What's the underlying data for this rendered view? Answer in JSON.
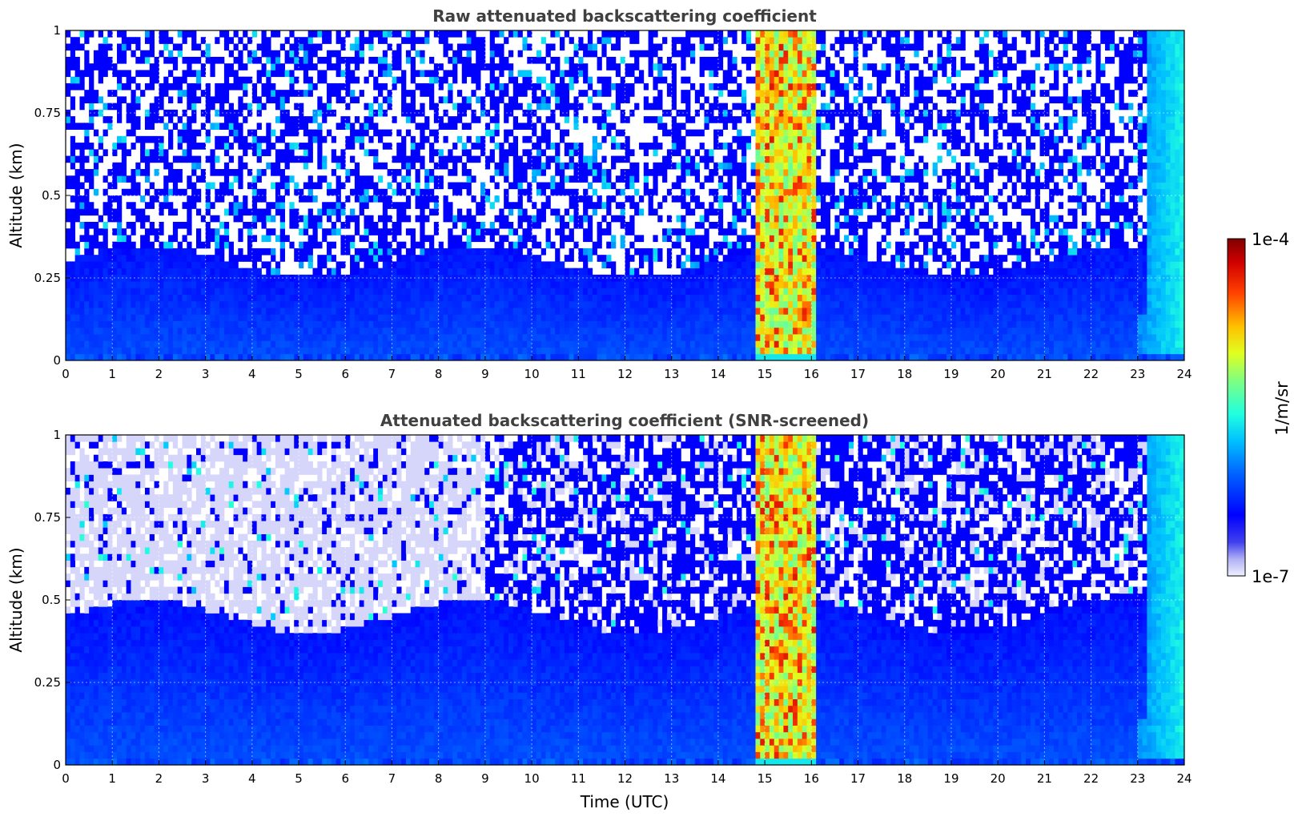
{
  "chart_data": [
    {
      "type": "heatmap",
      "title": "Raw attenuated backscattering coefficient",
      "xlabel": "",
      "ylabel": "Altitude (km)",
      "xlim": [
        0,
        24
      ],
      "ylim": [
        0,
        1
      ],
      "xticks": [
        "0",
        "1",
        "2",
        "3",
        "4",
        "5",
        "6",
        "7",
        "8",
        "9",
        "10",
        "11",
        "12",
        "13",
        "14",
        "15",
        "16",
        "17",
        "18",
        "19",
        "20",
        "21",
        "22",
        "23",
        "24"
      ],
      "yticks": [
        "0",
        "0.25",
        "0.5",
        "0.75",
        "1"
      ],
      "grid": true,
      "screened": false,
      "features": {
        "low_level_aerosol_top_km": 0.3,
        "cloud_band_utc": [
          14.8,
          16.1
        ],
        "late_enhancement_utc": [
          23.0,
          24.0
        ]
      }
    },
    {
      "type": "heatmap",
      "title": "Attenuated backscattering coefficient (SNR-screened)",
      "xlabel": "Time (UTC)",
      "ylabel": "Altitude (km)",
      "xlim": [
        0,
        24
      ],
      "ylim": [
        0,
        1
      ],
      "xticks": [
        "0",
        "1",
        "2",
        "3",
        "4",
        "5",
        "6",
        "7",
        "8",
        "9",
        "10",
        "11",
        "12",
        "13",
        "14",
        "15",
        "16",
        "17",
        "18",
        "19",
        "20",
        "21",
        "22",
        "23",
        "24"
      ],
      "yticks": [
        "0",
        "0.25",
        "0.5",
        "0.75",
        "1"
      ],
      "grid": true,
      "screened": true,
      "features": {
        "low_level_aerosol_top_km": 0.45,
        "cloud_band_utc": [
          14.8,
          16.1
        ],
        "late_enhancement_utc": [
          23.0,
          24.0
        ]
      }
    }
  ],
  "colorbar": {
    "label": "1/m/sr",
    "max_label": "1e-4",
    "min_label": "1e-7",
    "colormap": "jet-like",
    "scale": "log"
  }
}
